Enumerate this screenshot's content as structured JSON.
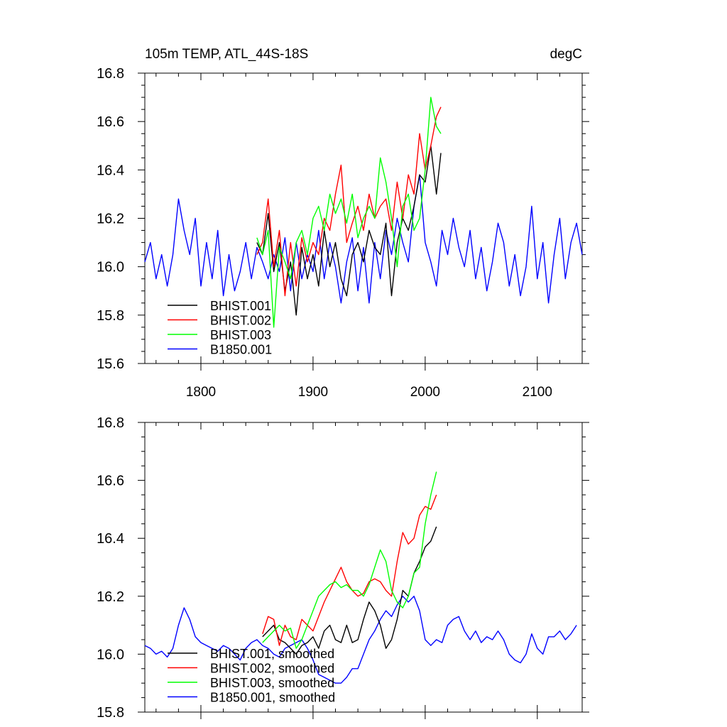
{
  "chart_data": [
    {
      "type": "line",
      "title": "105m TEMP, ATL_44S-18S",
      "units": "degC",
      "xlim": [
        1750,
        2140
      ],
      "ylim": [
        15.6,
        16.8
      ],
      "xticks": [
        1800,
        1900,
        2000,
        2100
      ],
      "xtick_labels": [
        "1800",
        "1900",
        "2000",
        "2100"
      ],
      "yticks": [
        15.6,
        15.8,
        16.0,
        16.2,
        16.4,
        16.6,
        16.8
      ],
      "ytick_labels": [
        "15.6",
        "15.8",
        "16.0",
        "16.2",
        "16.4",
        "16.6",
        "16.8"
      ],
      "legend": "bottom-left",
      "series": [
        {
          "name": "BHIST.001",
          "color": "#000000",
          "x": [
            1850,
            1855,
            1860,
            1865,
            1870,
            1875,
            1880,
            1885,
            1890,
            1895,
            1900,
            1905,
            1910,
            1915,
            1920,
            1925,
            1930,
            1935,
            1940,
            1945,
            1950,
            1955,
            1960,
            1965,
            1970,
            1975,
            1980,
            1985,
            1990,
            1995,
            2000,
            2005,
            2010,
            2014
          ],
          "y": [
            16.1,
            16.05,
            16.22,
            15.98,
            16.1,
            15.9,
            16.02,
            15.8,
            16.08,
            15.95,
            16.05,
            15.92,
            16.15,
            16.0,
            16.1,
            15.95,
            15.88,
            16.05,
            16.1,
            16.02,
            16.15,
            16.08,
            16.05,
            16.18,
            15.88,
            16.1,
            16.2,
            16.15,
            16.25,
            16.38,
            16.35,
            16.5,
            16.3,
            16.47
          ]
        },
        {
          "name": "BHIST.002",
          "color": "#ff0000",
          "x": [
            1850,
            1855,
            1860,
            1865,
            1870,
            1875,
            1880,
            1885,
            1890,
            1895,
            1900,
            1905,
            1910,
            1915,
            1920,
            1925,
            1930,
            1935,
            1940,
            1945,
            1950,
            1955,
            1960,
            1965,
            1970,
            1975,
            1980,
            1985,
            1990,
            1995,
            2000,
            2005,
            2010,
            2014
          ],
          "y": [
            16.05,
            16.1,
            16.28,
            16.0,
            16.15,
            15.88,
            16.1,
            15.92,
            16.12,
            16.02,
            16.1,
            16.05,
            16.2,
            16.15,
            16.3,
            16.42,
            16.1,
            16.18,
            16.25,
            16.15,
            16.3,
            16.2,
            16.25,
            16.28,
            16.15,
            16.35,
            16.2,
            16.38,
            16.3,
            16.55,
            16.4,
            16.5,
            16.62,
            16.66
          ]
        },
        {
          "name": "BHIST.003",
          "color": "#00ff00",
          "x": [
            1850,
            1855,
            1860,
            1865,
            1870,
            1875,
            1880,
            1885,
            1890,
            1895,
            1900,
            1905,
            1910,
            1915,
            1920,
            1925,
            1930,
            1935,
            1940,
            1945,
            1950,
            1955,
            1960,
            1965,
            1970,
            1975,
            1980,
            1985,
            1990,
            1995,
            2000,
            2005,
            2010,
            2014
          ],
          "y": [
            16.12,
            16.05,
            16.15,
            15.75,
            16.08,
            16.02,
            15.95,
            16.1,
            16.15,
            16.05,
            16.2,
            16.25,
            16.15,
            16.3,
            16.22,
            16.28,
            16.18,
            16.3,
            16.12,
            16.2,
            16.25,
            16.2,
            16.45,
            16.35,
            16.2,
            16.0,
            16.25,
            16.3,
            16.15,
            16.2,
            16.4,
            16.7,
            16.58,
            16.55
          ]
        },
        {
          "name": "B1850.001",
          "color": "#0000ff",
          "x": [
            1750,
            1755,
            1760,
            1765,
            1770,
            1775,
            1780,
            1785,
            1790,
            1795,
            1800,
            1805,
            1810,
            1815,
            1820,
            1825,
            1830,
            1835,
            1840,
            1845,
            1850,
            1855,
            1860,
            1865,
            1870,
            1875,
            1880,
            1885,
            1890,
            1895,
            1900,
            1905,
            1910,
            1915,
            1920,
            1925,
            1930,
            1935,
            1940,
            1945,
            1950,
            1955,
            1960,
            1965,
            1970,
            1975,
            1980,
            1985,
            1990,
            1995,
            2000,
            2005,
            2010,
            2015,
            2020,
            2025,
            2030,
            2035,
            2040,
            2045,
            2050,
            2055,
            2060,
            2065,
            2070,
            2075,
            2080,
            2085,
            2090,
            2095,
            2100,
            2105,
            2110,
            2115,
            2120,
            2125,
            2130,
            2135,
            2140
          ],
          "y": [
            16.02,
            16.1,
            15.95,
            16.05,
            15.92,
            16.05,
            16.28,
            16.15,
            16.05,
            16.2,
            15.92,
            16.1,
            15.95,
            16.15,
            15.88,
            16.05,
            15.9,
            15.98,
            16.1,
            15.95,
            16.08,
            16.02,
            15.95,
            16.05,
            15.98,
            16.12,
            15.9,
            16.1,
            15.95,
            16.05,
            15.98,
            16.15,
            15.95,
            16.1,
            16.0,
            15.85,
            16.02,
            16.12,
            15.9,
            16.08,
            15.85,
            16.1,
            15.95,
            16.15,
            16.05,
            16.2,
            16.1,
            16.02,
            16.25,
            16.38,
            16.1,
            16.02,
            15.92,
            16.15,
            16.05,
            16.2,
            16.08,
            16.0,
            16.15,
            15.95,
            16.08,
            15.9,
            16.02,
            16.18,
            16.1,
            15.92,
            16.05,
            15.88,
            16.0,
            16.25,
            15.95,
            16.1,
            15.85,
            16.05,
            16.2,
            15.95,
            16.1,
            16.18,
            16.05
          ]
        }
      ]
    },
    {
      "type": "line",
      "title": "",
      "xlim": [
        1750,
        2140
      ],
      "ylim": [
        15.8,
        16.8
      ],
      "xticks": [
        1800,
        1900,
        2000,
        2100
      ],
      "yticks": [
        15.8,
        16.0,
        16.2,
        16.4,
        16.6,
        16.8
      ],
      "ytick_labels": [
        "15.8",
        "16.0",
        "16.2",
        "16.4",
        "16.6",
        "16.8"
      ],
      "legend": "bottom-left",
      "series": [
        {
          "name": "BHIST.001, smoothed",
          "color": "#000000",
          "x": [
            1855,
            1860,
            1865,
            1870,
            1875,
            1880,
            1885,
            1890,
            1895,
            1900,
            1905,
            1910,
            1915,
            1920,
            1925,
            1930,
            1935,
            1940,
            1945,
            1950,
            1955,
            1960,
            1965,
            1970,
            1975,
            1980,
            1985,
            1990,
            1995,
            2000,
            2005,
            2010
          ],
          "y": [
            16.06,
            16.08,
            16.1,
            16.05,
            16.04,
            16.02,
            16.0,
            16.03,
            16.04,
            16.06,
            16.02,
            16.08,
            16.1,
            16.05,
            16.04,
            16.1,
            16.04,
            16.05,
            16.12,
            16.18,
            16.15,
            16.1,
            16.02,
            16.05,
            16.12,
            16.22,
            16.2,
            16.28,
            16.32,
            16.37,
            16.39,
            16.44
          ]
        },
        {
          "name": "BHIST.002, smoothed",
          "color": "#ff0000",
          "x": [
            1855,
            1860,
            1865,
            1870,
            1875,
            1880,
            1885,
            1890,
            1895,
            1900,
            1905,
            1910,
            1915,
            1920,
            1925,
            1930,
            1935,
            1940,
            1945,
            1950,
            1955,
            1960,
            1965,
            1970,
            1975,
            1980,
            1985,
            1990,
            1995,
            2000,
            2005,
            2010
          ],
          "y": [
            16.07,
            16.13,
            16.12,
            16.03,
            16.1,
            16.06,
            16.05,
            16.12,
            16.1,
            16.08,
            16.13,
            16.18,
            16.22,
            16.26,
            16.3,
            16.25,
            16.22,
            16.2,
            16.21,
            16.25,
            16.26,
            16.25,
            16.22,
            16.2,
            16.32,
            16.42,
            16.38,
            16.4,
            16.48,
            16.51,
            16.5,
            16.55
          ]
        },
        {
          "name": "BHIST.003, smoothed",
          "color": "#00ff00",
          "x": [
            1855,
            1860,
            1865,
            1870,
            1875,
            1880,
            1885,
            1890,
            1895,
            1900,
            1905,
            1910,
            1915,
            1920,
            1925,
            1930,
            1935,
            1940,
            1945,
            1950,
            1955,
            1960,
            1965,
            1970,
            1975,
            1980,
            1985,
            1990,
            1995,
            2000,
            2005,
            2010
          ],
          "y": [
            16.04,
            16.06,
            16.08,
            16.1,
            16.08,
            16.09,
            16.02,
            16.05,
            16.1,
            16.15,
            16.2,
            16.22,
            16.24,
            16.25,
            16.23,
            16.24,
            16.22,
            16.22,
            16.2,
            16.24,
            16.3,
            16.36,
            16.32,
            16.22,
            16.18,
            16.16,
            16.2,
            16.28,
            16.3,
            16.45,
            16.55,
            16.63
          ]
        },
        {
          "name": "B1850.001, smoothed",
          "color": "#0000ff",
          "x": [
            1750,
            1755,
            1760,
            1765,
            1770,
            1775,
            1780,
            1785,
            1790,
            1795,
            1800,
            1805,
            1810,
            1815,
            1820,
            1825,
            1830,
            1835,
            1840,
            1845,
            1850,
            1855,
            1860,
            1865,
            1870,
            1875,
            1880,
            1885,
            1890,
            1895,
            1900,
            1905,
            1910,
            1915,
            1920,
            1925,
            1930,
            1935,
            1940,
            1945,
            1950,
            1955,
            1960,
            1965,
            1970,
            1975,
            1980,
            1985,
            1990,
            1995,
            2000,
            2005,
            2010,
            2015,
            2020,
            2025,
            2030,
            2035,
            2040,
            2045,
            2050,
            2055,
            2060,
            2065,
            2070,
            2075,
            2080,
            2085,
            2090,
            2095,
            2100,
            2105,
            2110,
            2115,
            2120,
            2125,
            2130,
            2135
          ],
          "y": [
            16.03,
            16.02,
            16.0,
            16.01,
            15.99,
            16.02,
            16.1,
            16.16,
            16.12,
            16.06,
            16.04,
            16.03,
            16.02,
            16.01,
            16.03,
            16.02,
            16.0,
            15.98,
            16.02,
            16.04,
            16.05,
            16.03,
            16.02,
            16.0,
            15.99,
            16.02,
            16.03,
            16.04,
            16.05,
            16.02,
            15.98,
            15.93,
            15.92,
            15.91,
            15.9,
            15.9,
            15.92,
            15.95,
            15.95,
            16.0,
            16.05,
            16.08,
            16.12,
            16.15,
            16.13,
            16.17,
            16.2,
            16.18,
            16.2,
            16.15,
            16.05,
            16.03,
            16.05,
            16.04,
            16.1,
            16.12,
            16.13,
            16.08,
            16.05,
            16.08,
            16.04,
            16.06,
            16.05,
            16.08,
            16.05,
            16.0,
            15.98,
            15.97,
            16.0,
            16.07,
            16.02,
            16.0,
            16.06,
            16.06,
            16.08,
            16.05,
            16.07,
            16.1
          ]
        }
      ]
    }
  ]
}
